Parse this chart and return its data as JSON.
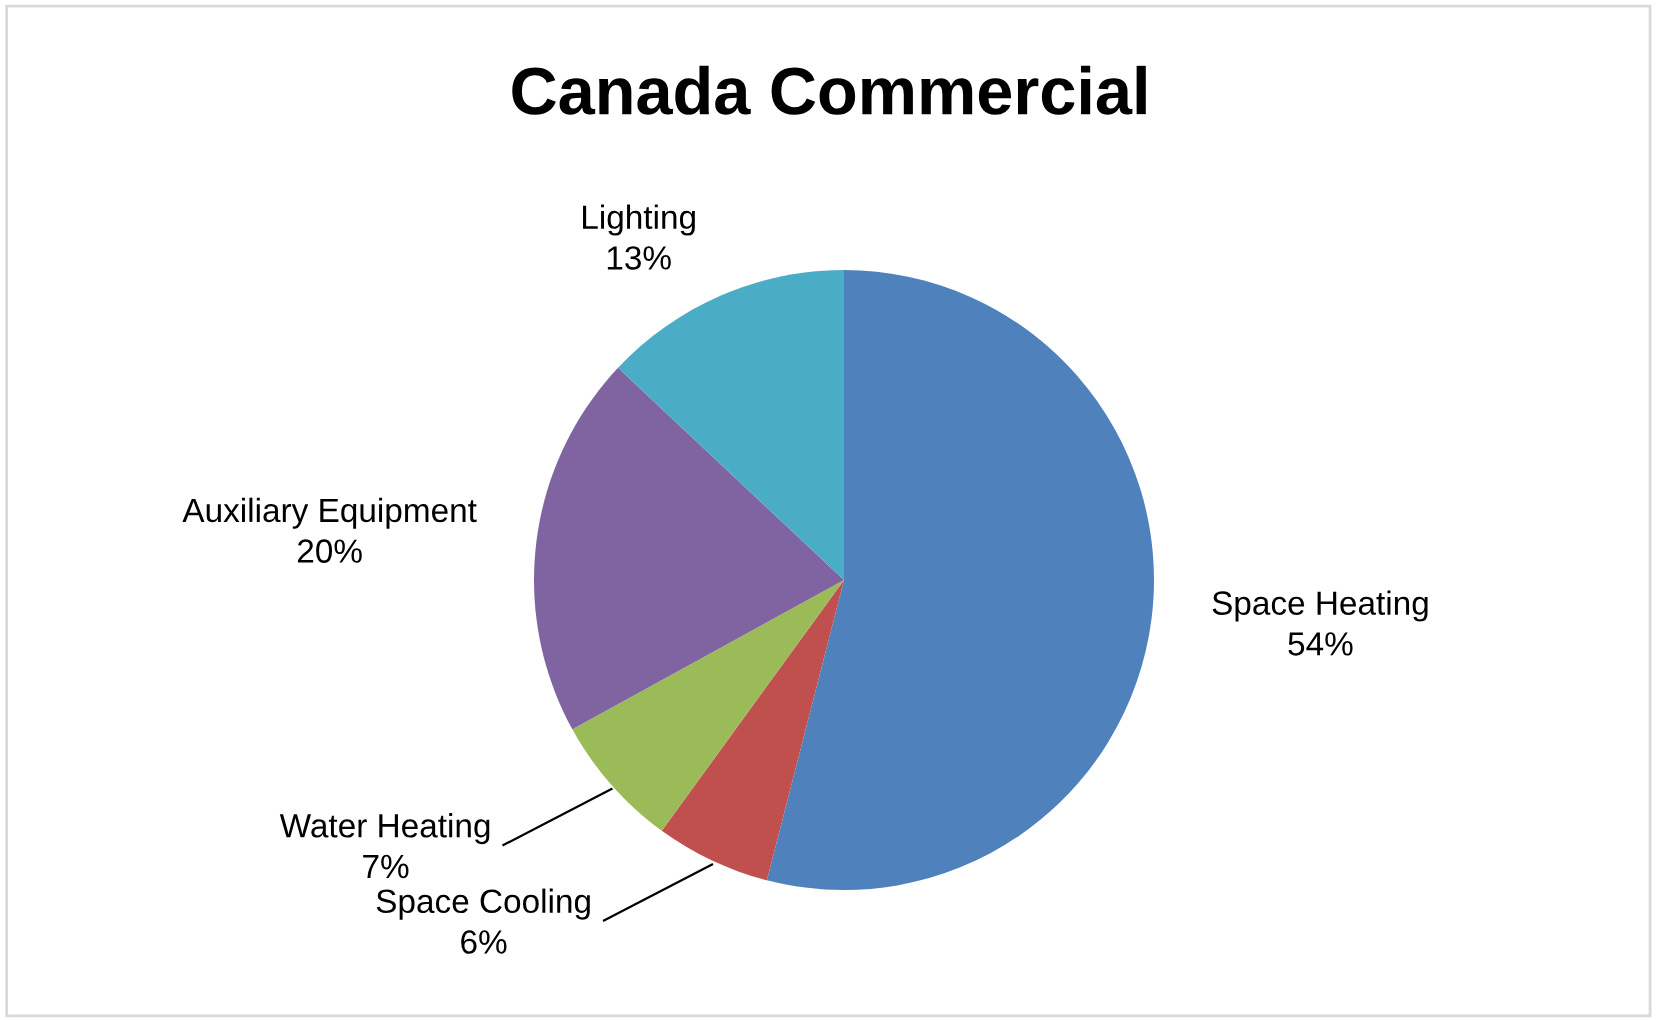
{
  "chart_data": {
    "type": "pie",
    "title": "Canada Commercial",
    "categories": [
      "Space Heating",
      "Space Cooling",
      "Water Heating",
      "Auxiliary Equipment",
      "Lighting"
    ],
    "values": [
      54,
      6,
      7,
      20,
      13
    ],
    "colors": [
      "#4f81bd",
      "#c0504d",
      "#9bbb59",
      "#8064a2",
      "#4bacc6"
    ],
    "value_labels": [
      "54%",
      "6%",
      "7%",
      "20%",
      "13%"
    ],
    "legend": false
  }
}
